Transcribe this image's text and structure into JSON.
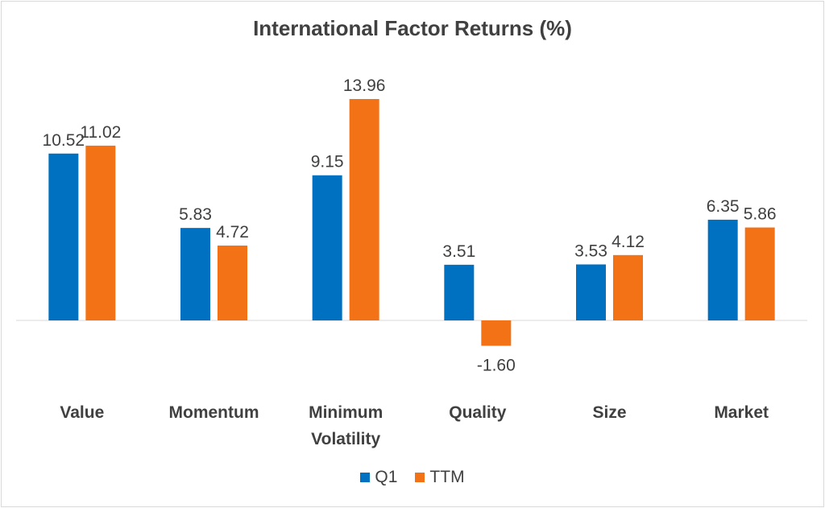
{
  "chart_data": {
    "type": "bar",
    "title": "International Factor Returns (%)",
    "categories": [
      [
        "Value"
      ],
      [
        "Momentum"
      ],
      [
        "Minimum",
        "Volatility"
      ],
      [
        "Quality"
      ],
      [
        "Size"
      ],
      [
        "Market"
      ]
    ],
    "series": [
      {
        "name": "Q1",
        "color": "#0070C0",
        "values": [
          10.52,
          5.83,
          9.15,
          3.51,
          3.53,
          6.35
        ],
        "labels": [
          "10.52",
          "5.83",
          "9.15",
          "3.51",
          "3.53",
          "6.35"
        ]
      },
      {
        "name": "TTM",
        "color": "#F47216",
        "values": [
          11.02,
          4.72,
          13.96,
          -1.6,
          4.12,
          5.86
        ],
        "labels": [
          "11.02",
          "4.72",
          "13.96",
          "-1.60",
          "4.12",
          "5.86"
        ]
      }
    ],
    "xlabel": "",
    "ylabel": "",
    "ylim": [
      -1.6,
      13.96
    ],
    "grid": false,
    "legend_position": "bottom"
  }
}
